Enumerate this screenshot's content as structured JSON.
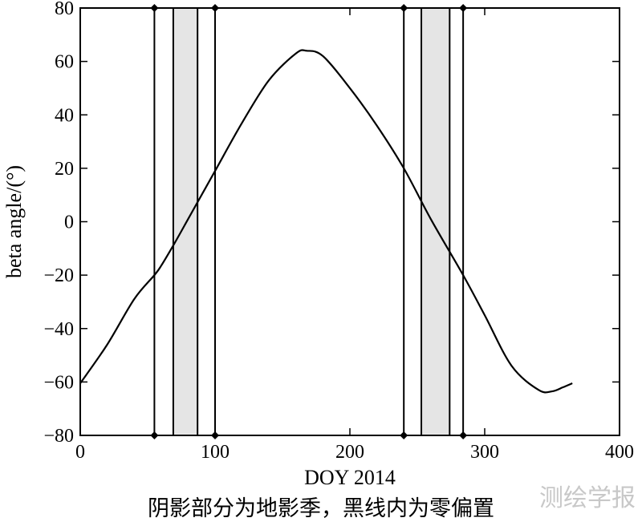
{
  "chart_data": {
    "type": "line",
    "xlabel": "DOY 2014",
    "ylabel": "beta angle/(°)",
    "xlim": [
      0,
      400
    ],
    "ylim": [
      -80,
      80
    ],
    "xticks": [
      0,
      100,
      200,
      300,
      400
    ],
    "yticks": [
      -80,
      -60,
      -40,
      -20,
      0,
      20,
      40,
      60,
      80
    ],
    "grid": false,
    "series": [
      {
        "x": [
          0,
          20,
          40,
          55,
          60,
          70,
          80,
          90,
          100,
          120,
          140,
          160,
          168,
          180,
          200,
          220,
          240,
          260,
          284,
          300,
          320,
          340,
          350,
          358,
          365
        ],
        "y": [
          -60.5,
          -46,
          -29,
          -20,
          -16.5,
          -8,
          1,
          10,
          19,
          37,
          53,
          63,
          64,
          62,
          50,
          36,
          20,
          1,
          -20,
          -35,
          -54,
          -63,
          -63.5,
          -62,
          -60.5
        ]
      }
    ],
    "shaded_regions": [
      {
        "x_start": 69,
        "x_end": 87
      },
      {
        "x_start": 253,
        "x_end": 274
      }
    ],
    "vertical_lines": [
      55,
      69,
      87,
      100,
      240,
      253,
      274,
      284
    ],
    "line_markers": [
      55,
      100,
      240,
      284
    ],
    "colors": {
      "line": "#000000",
      "shade": "#e5e5e5",
      "frame": "#000000"
    }
  },
  "caption": "阴影部分为地影季，黑线内为零偏置",
  "watermark": "测绘学报"
}
